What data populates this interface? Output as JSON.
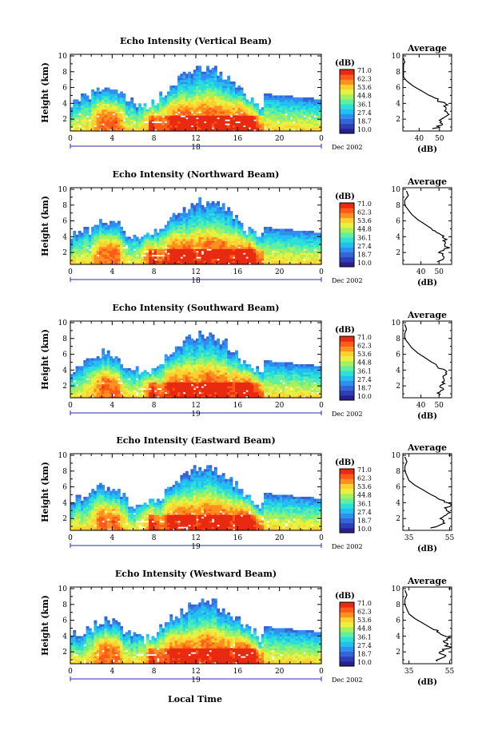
{
  "figure": {
    "bottom_label": "Local Time",
    "colorbar_ticks": [
      "71.0",
      "62.3",
      "53.6",
      "44.8",
      "36.1",
      "27.4",
      "18.7",
      "10.0"
    ],
    "colorbar_unit": "(dB)",
    "colormap": [
      "#2a1f8c",
      "#2c3fb5",
      "#3464d6",
      "#2f8ef0",
      "#22c0f0",
      "#2ce0d8",
      "#5ef0a0",
      "#a6f060",
      "#e8f040",
      "#ffd030",
      "#ff9020",
      "#ff5a1a",
      "#e82a10"
    ]
  },
  "chart_data": [
    {
      "type": "heatmap",
      "title": "Echo Intensity (Vertical Beam)",
      "ylabel": "Height (km)",
      "xlim": [
        0,
        24
      ],
      "ylim": [
        0.5,
        10.2
      ],
      "x_ticks": [
        "0",
        "4",
        "8",
        "12",
        "16",
        "20",
        "0"
      ],
      "y_ticks": [
        "2",
        "4",
        "6",
        "8",
        "10"
      ],
      "date_tick": "18",
      "date_label": "Dec 2002",
      "colorbar_range": [
        10.0,
        71.0
      ],
      "profile": {
        "title": "Average",
        "xlabel": "(dB)",
        "xlim": [
          32,
          56
        ],
        "x_ticks": [
          40,
          50
        ],
        "heights": [
          0.8,
          1.4,
          2.0,
          2.6,
          3.2,
          3.8,
          4.4,
          5.0,
          5.6,
          6.2,
          6.8,
          7.4,
          8.0,
          8.6,
          9.2,
          9.8
        ],
        "values": [
          48,
          52,
          50,
          54,
          52,
          54,
          49,
          45,
          41,
          37,
          34,
          32,
          31,
          31,
          33,
          32
        ]
      }
    },
    {
      "type": "heatmap",
      "title": "Echo Intensity (Northward Beam)",
      "ylabel": "Height (km)",
      "xlim": [
        0,
        24
      ],
      "ylim": [
        0.5,
        10.2
      ],
      "x_ticks": [
        "0",
        "4",
        "8",
        "12",
        "16",
        "20",
        "0"
      ],
      "y_ticks": [
        "2",
        "4",
        "6",
        "8",
        "10"
      ],
      "date_tick": "18",
      "date_label": "Dec 2002",
      "colorbar_range": [
        10.0,
        71.0
      ],
      "profile": {
        "title": "Average",
        "xlabel": "(dB)",
        "xlim": [
          30,
          57
        ],
        "x_ticks": [
          40,
          50
        ],
        "heights": [
          0.8,
          1.4,
          2.0,
          2.6,
          3.2,
          3.8,
          4.4,
          5.0,
          5.6,
          6.2,
          6.8,
          7.4,
          8.0,
          8.6,
          9.2,
          9.8
        ],
        "values": [
          49,
          53,
          51,
          55,
          53,
          54,
          50,
          46,
          42,
          38,
          35,
          33,
          31,
          31,
          33,
          32
        ]
      }
    },
    {
      "type": "heatmap",
      "title": "Echo Intensity (Southward Beam)",
      "ylabel": "Height (km)",
      "xlim": [
        0,
        24
      ],
      "ylim": [
        0.5,
        10.2
      ],
      "x_ticks": [
        "0",
        "4",
        "8",
        "12",
        "16",
        "20",
        "0"
      ],
      "y_ticks": [
        "2",
        "4",
        "6",
        "8",
        "10"
      ],
      "date_tick": "19",
      "date_label": "Dec 2002",
      "colorbar_range": [
        10.0,
        71.0
      ],
      "profile": {
        "title": "Average",
        "xlabel": "(dB)",
        "xlim": [
          30,
          57
        ],
        "x_ticks": [
          40,
          50
        ],
        "heights": [
          0.8,
          1.4,
          2.0,
          2.6,
          3.2,
          3.8,
          4.4,
          5.0,
          5.6,
          6.2,
          6.8,
          7.4,
          8.0,
          8.6,
          9.2,
          9.8
        ],
        "values": [
          49,
          52,
          50,
          54,
          53,
          54,
          50,
          46,
          42,
          38,
          35,
          33,
          31,
          31,
          32,
          31
        ]
      }
    },
    {
      "type": "heatmap",
      "title": "Echo Intensity (Eastward Beam)",
      "ylabel": "Height (km)",
      "xlim": [
        0,
        24
      ],
      "ylim": [
        0.5,
        10.2
      ],
      "x_ticks": [
        "0",
        "4",
        "8",
        "12",
        "16",
        "20",
        "0"
      ],
      "y_ticks": [
        "2",
        "4",
        "6",
        "8",
        "10"
      ],
      "date_tick": "19",
      "date_label": "Dec 2002",
      "colorbar_range": [
        10.0,
        71.0
      ],
      "profile": {
        "title": "Average",
        "xlabel": "(dB)",
        "xlim": [
          32,
          56
        ],
        "x_ticks": [
          35,
          55
        ],
        "heights": [
          0.8,
          1.4,
          2.0,
          2.6,
          3.2,
          3.8,
          4.4,
          5.0,
          5.6,
          6.2,
          6.8,
          7.4,
          8.0,
          8.6,
          9.2,
          9.8
        ],
        "values": [
          47,
          54,
          50,
          55,
          53,
          55,
          50,
          46,
          42,
          38,
          35,
          34,
          33,
          33,
          34,
          33
        ]
      }
    },
    {
      "type": "heatmap",
      "title": "Echo Intensity (Westward Beam)",
      "ylabel": "Height (km)",
      "xlim": [
        0,
        24
      ],
      "ylim": [
        0.5,
        10.2
      ],
      "x_ticks": [
        "0",
        "4",
        "8",
        "12",
        "16",
        "20",
        "0"
      ],
      "y_ticks": [
        "2",
        "4",
        "6",
        "8",
        "10"
      ],
      "date_tick": "19",
      "date_label": "Dec 2002",
      "colorbar_range": [
        10.0,
        71.0
      ],
      "profile": {
        "title": "Average",
        "xlabel": "(dB)",
        "xlim": [
          32,
          56
        ],
        "x_ticks": [
          35,
          55
        ],
        "heights": [
          0.8,
          1.4,
          2.0,
          2.6,
          3.2,
          3.8,
          4.4,
          5.0,
          5.6,
          6.2,
          6.8,
          7.4,
          8.0,
          8.6,
          9.2,
          9.8
        ],
        "values": [
          48,
          53,
          50,
          55,
          52,
          55,
          50,
          46,
          42,
          38,
          35,
          34,
          33,
          33,
          34,
          33
        ]
      }
    }
  ]
}
